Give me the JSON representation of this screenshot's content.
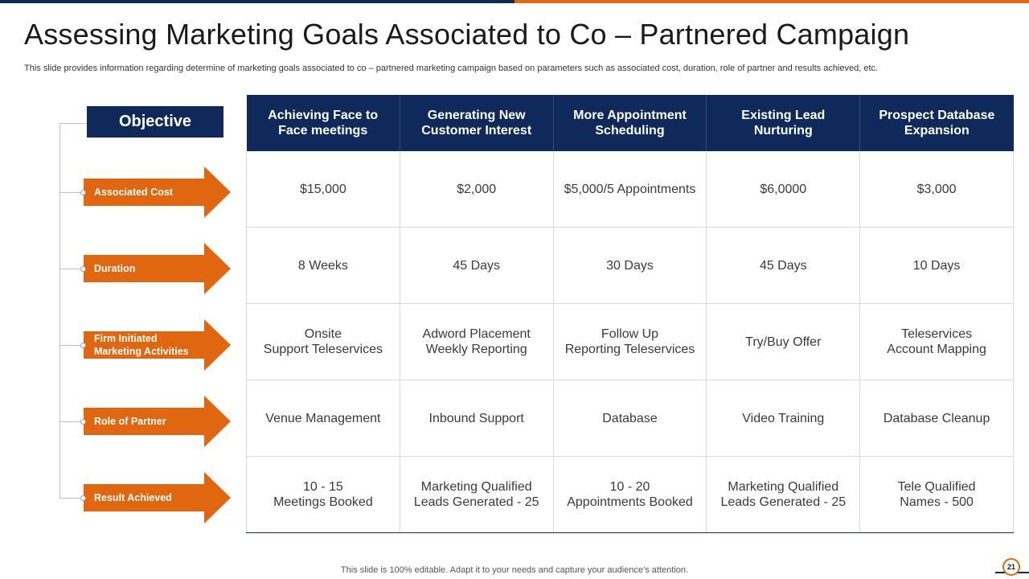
{
  "title": "Assessing Marketing Goals Associated to Co – Partnered Campaign",
  "subtitle": "This slide provides information regarding determine of marketing goals associated to co – partnered marketing campaign based on parameters such as associated cost, duration, role of partner and results achieved, etc.",
  "objective_label": "Objective",
  "rows": [
    {
      "label": "Associated Cost",
      "cells": [
        "$15,000",
        "$2,000",
        "$5,000/5 Appointments",
        "$6,0000",
        "$3,000"
      ]
    },
    {
      "label": "Duration",
      "cells": [
        "8 Weeks",
        "45 Days",
        "30 Days",
        "45 Days",
        "10 Days"
      ]
    },
    {
      "label": "Firm Initiated\nMarketing Activities",
      "cells": [
        "Onsite\nSupport Teleservices",
        "Adword Placement\nWeekly Reporting",
        "Follow Up\nReporting Teleservices",
        "Try/Buy  Offer",
        "Teleservices\nAccount Mapping"
      ]
    },
    {
      "label": "Role of Partner",
      "cells": [
        "Venue Management",
        "Inbound  Support",
        "Database",
        "Video Training",
        "Database Cleanup"
      ]
    },
    {
      "label": "Result Achieved",
      "cells": [
        "10 - 15\nMeetings Booked",
        "Marketing Qualified\nLeads Generated - 25",
        "10 - 20\nAppointments  Booked",
        "Marketing Qualified\nLeads Generated - 25",
        "Tele Qualified\nNames - 500"
      ]
    }
  ],
  "columns": [
    "Achieving Face to Face meetings",
    "Generating New Customer Interest",
    "More Appointment Scheduling",
    "Existing Lead Nurturing",
    "Prospect Database Expansion"
  ],
  "footer": "This slide is 100% editable. Adapt it to your needs and capture your audience’s attention.",
  "page_number": "21",
  "colors": {
    "navy": "#0f2a5a",
    "orange": "#e0660f"
  }
}
